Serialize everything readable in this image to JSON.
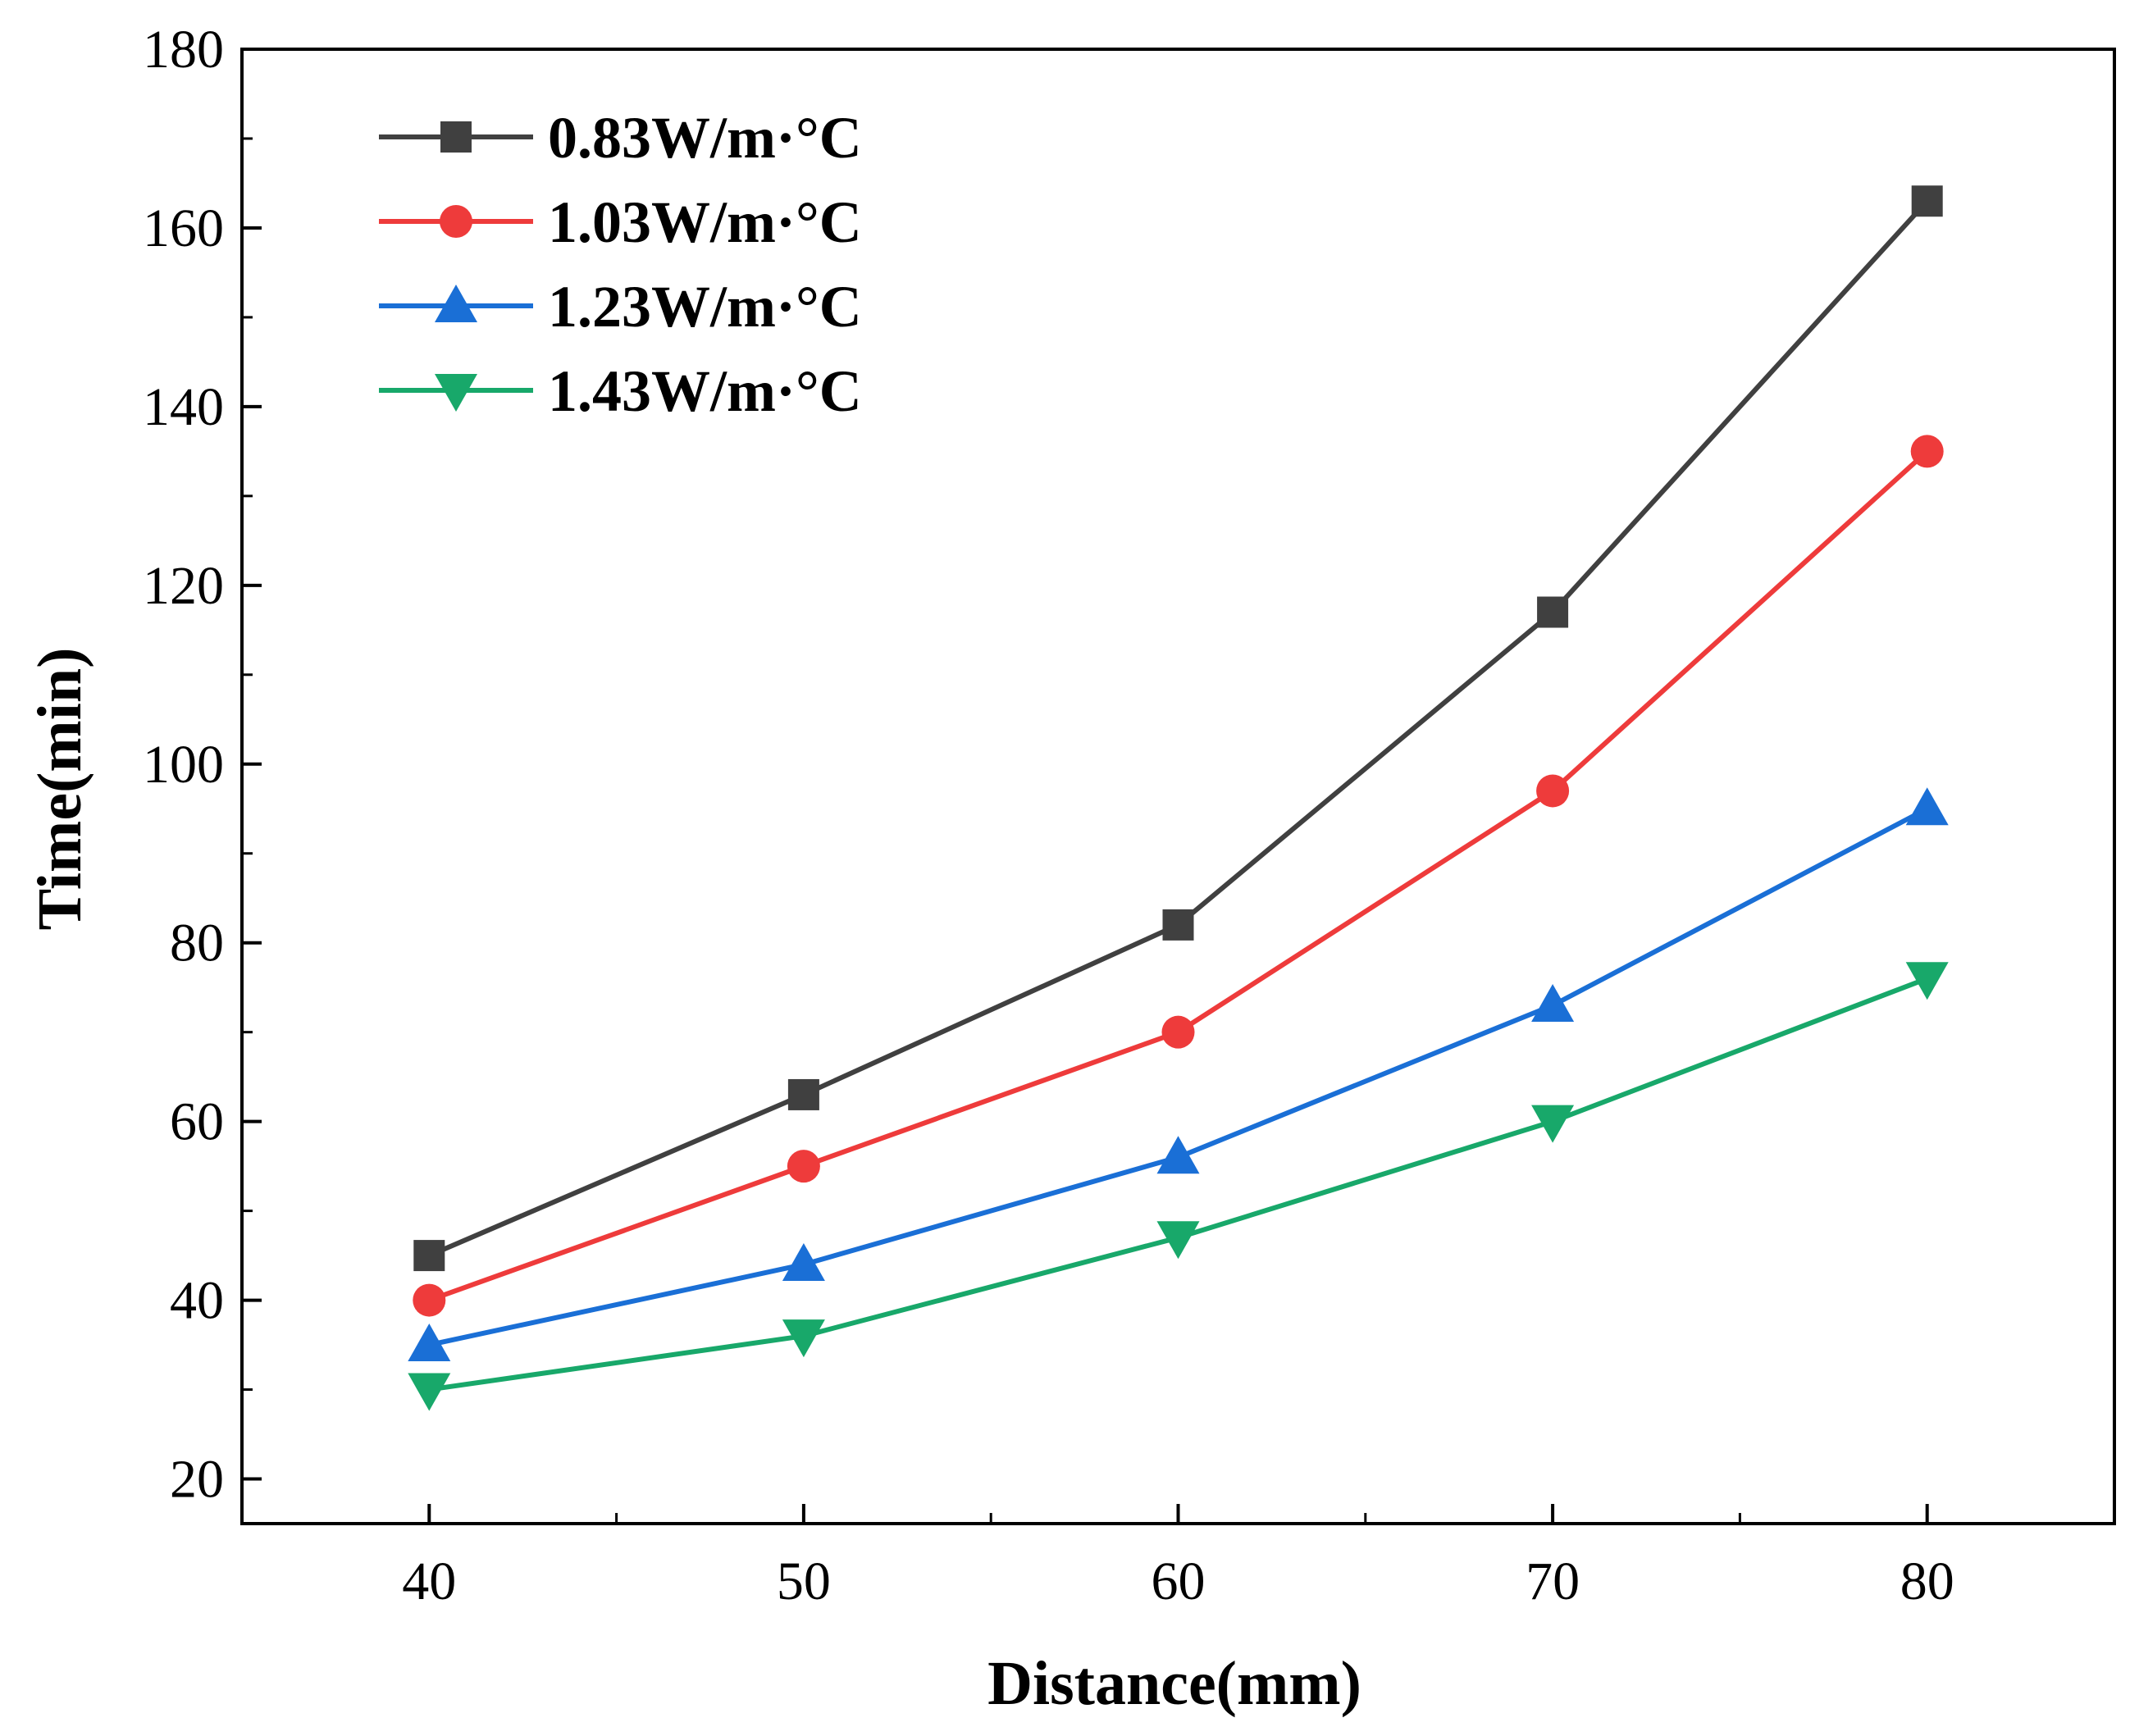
{
  "chart_data": {
    "type": "line",
    "title": "",
    "xlabel": "Distance(mm)",
    "ylabel": "Time(min)",
    "xlim": [
      35,
      85
    ],
    "ylim": [
      15,
      180
    ],
    "x": [
      40,
      50,
      60,
      70,
      80
    ],
    "xticks": [
      40,
      50,
      60,
      70,
      80
    ],
    "xticks_minor": [
      45,
      55,
      65,
      75
    ],
    "yticks": [
      20,
      40,
      60,
      80,
      100,
      120,
      140,
      160,
      180
    ],
    "yticks_minor": [
      30,
      50,
      70,
      90,
      110,
      130,
      150,
      170
    ],
    "grid": false,
    "legend_position": "top-left",
    "series": [
      {
        "name": "0.83W/m·°C",
        "color": "#404040",
        "marker": "square",
        "values": [
          45,
          63,
          82,
          117,
          163
        ]
      },
      {
        "name": "1.03W/m·°C",
        "color": "#ee3b3b",
        "marker": "circle",
        "values": [
          40,
          55,
          70,
          97,
          135
        ]
      },
      {
        "name": "1.23W/m·°C",
        "color": "#1a6fd6",
        "marker": "triangle-up",
        "values": [
          35,
          44,
          56,
          73,
          95
        ]
      },
      {
        "name": "1.43W/m·°C",
        "color": "#18a86a",
        "marker": "triangle-down",
        "values": [
          30,
          36,
          47,
          60,
          76
        ]
      }
    ]
  }
}
